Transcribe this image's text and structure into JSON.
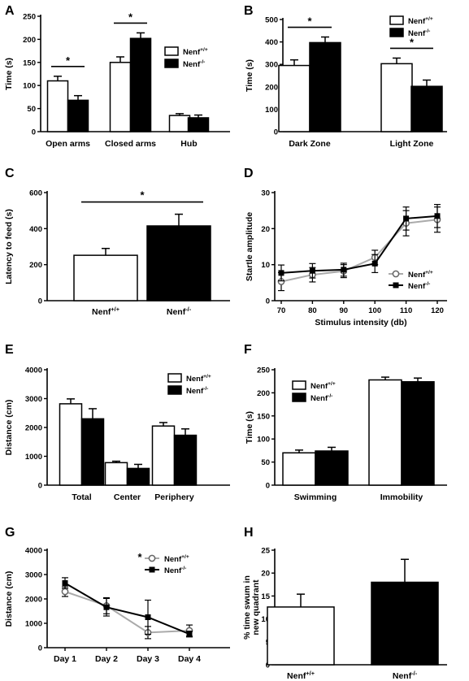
{
  "chart_data": [
    {
      "panel": "A",
      "type": "bar",
      "ylabel": "Time (s)",
      "ylim": [
        0,
        250
      ],
      "yticks": [
        0,
        50,
        100,
        150,
        200,
        250
      ],
      "categories": [
        "Open arms",
        "Closed arms",
        "Hub"
      ],
      "series": [
        {
          "name": "Nenf+/+",
          "color": "#ffffff",
          "values": [
            110,
            150,
            35
          ],
          "errors": [
            10,
            12,
            4
          ]
        },
        {
          "name": "Nenf-/-",
          "color": "#000000",
          "values": [
            68,
            202,
            30
          ],
          "errors": [
            10,
            12,
            6
          ]
        }
      ],
      "legend": "right",
      "significance": [
        {
          "category": 0,
          "label": "*"
        },
        {
          "category": 1,
          "label": "*"
        }
      ]
    },
    {
      "panel": "B",
      "type": "bar",
      "ylabel": "Time (s)",
      "ylim": [
        0,
        500
      ],
      "yticks": [
        0,
        100,
        200,
        300,
        400,
        500
      ],
      "categories": [
        "Dark Zone",
        "Light Zone"
      ],
      "series": [
        {
          "name": "Nenf+/+",
          "color": "#ffffff",
          "values": [
            295,
            303
          ],
          "errors": [
            25,
            25
          ]
        },
        {
          "name": "Nenf-/-",
          "color": "#000000",
          "values": [
            397,
            202
          ],
          "errors": [
            25,
            28
          ]
        }
      ],
      "legend": "top-right",
      "significance": [
        {
          "category": 0,
          "label": "*"
        },
        {
          "category": 1,
          "label": "*"
        }
      ]
    },
    {
      "panel": "C",
      "type": "bar",
      "ylabel": "Latency to feed (s)",
      "ylim": [
        0,
        600
      ],
      "yticks": [
        0,
        200,
        400,
        600
      ],
      "categories": [
        "Nenf+/+",
        "Nenf-/-"
      ],
      "values": [
        252,
        415
      ],
      "errors": [
        38,
        65
      ],
      "colors": [
        "#ffffff",
        "#000000"
      ],
      "significance": [
        {
          "between": [
            0,
            1
          ],
          "label": "*"
        }
      ]
    },
    {
      "panel": "D",
      "type": "line",
      "xlabel": "Stimulus intensity (db)",
      "ylabel": "Startle amplitude",
      "x": [
        70,
        80,
        90,
        100,
        110,
        120
      ],
      "xlim": [
        65,
        125
      ],
      "ylim": [
        0,
        30
      ],
      "yticks": [
        0,
        10,
        20,
        30
      ],
      "series": [
        {
          "name": "Nenf+/+",
          "color": "#aaaaaa",
          "marker": "open-circle",
          "values": [
            5.3,
            7.2,
            8.2,
            12.0,
            21.5,
            22.5
          ],
          "errors": [
            2.5,
            2.0,
            1.8,
            2.0,
            3.5,
            3.5
          ]
        },
        {
          "name": "Nenf-/-",
          "color": "#000000",
          "marker": "filled-square",
          "values": [
            7.7,
            8.3,
            8.6,
            10.3,
            22.8,
            23.5
          ],
          "errors": [
            2.2,
            2.0,
            1.8,
            2.5,
            3.2,
            3.2
          ]
        }
      ],
      "legend": "right"
    },
    {
      "panel": "E",
      "type": "bar",
      "ylabel": "Distance (cm)",
      "ylim": [
        0,
        4000
      ],
      "yticks": [
        0,
        1000,
        2000,
        3000,
        4000
      ],
      "categories": [
        "Total",
        "Center",
        "Periphery"
      ],
      "series": [
        {
          "name": "Nenf+/+",
          "color": "#ffffff",
          "values": [
            2820,
            780,
            2050
          ],
          "errors": [
            170,
            50,
            120
          ]
        },
        {
          "name": "Nenf-/-",
          "color": "#000000",
          "values": [
            2300,
            580,
            1730
          ],
          "errors": [
            350,
            140,
            220
          ]
        }
      ],
      "legend": "top-right"
    },
    {
      "panel": "F",
      "type": "bar",
      "ylabel": "Time (s)",
      "ylim": [
        0,
        250
      ],
      "yticks": [
        0,
        50,
        100,
        150,
        200,
        250
      ],
      "categories": [
        "Swimming",
        "Immobility"
      ],
      "series": [
        {
          "name": "Nenf+/+",
          "color": "#ffffff",
          "values": [
            70,
            228
          ],
          "errors": [
            6,
            6
          ]
        },
        {
          "name": "Nenf-/-",
          "color": "#000000",
          "values": [
            74,
            224
          ],
          "errors": [
            8,
            8
          ]
        }
      ],
      "legend": "top-left"
    },
    {
      "panel": "G",
      "type": "line",
      "ylabel": "Distance (cm)",
      "ylim": [
        0,
        4000
      ],
      "yticks": [
        0,
        1000,
        2000,
        3000,
        4000
      ],
      "categories": [
        "Day 1",
        "Day 2",
        "Day 3",
        "Day 4"
      ],
      "series": [
        {
          "name": "Nenf+/+",
          "color": "#aaaaaa",
          "marker": "open-circle",
          "values": [
            2300,
            1720,
            620,
            700
          ],
          "errors": [
            200,
            330,
            250,
            230
          ]
        },
        {
          "name": "Nenf-/-",
          "color": "#000000",
          "marker": "filled-square",
          "values": [
            2650,
            1660,
            1250,
            560
          ],
          "errors": [
            220,
            360,
            700,
            120
          ]
        }
      ],
      "legend": "top-right",
      "significance": [
        {
          "category": 2,
          "label": "*"
        }
      ]
    },
    {
      "panel": "H",
      "type": "bar",
      "ylabel": "% time swum in new quadrant",
      "ylim": [
        0,
        25
      ],
      "yticks": [
        0,
        5,
        10,
        15,
        20,
        25
      ],
      "categories": [
        "Nenf+/+",
        "Nenf-/-"
      ],
      "values": [
        12.6,
        18.0
      ],
      "errors": [
        2.8,
        5.0
      ],
      "colors": [
        "#ffffff",
        "#000000"
      ]
    }
  ]
}
